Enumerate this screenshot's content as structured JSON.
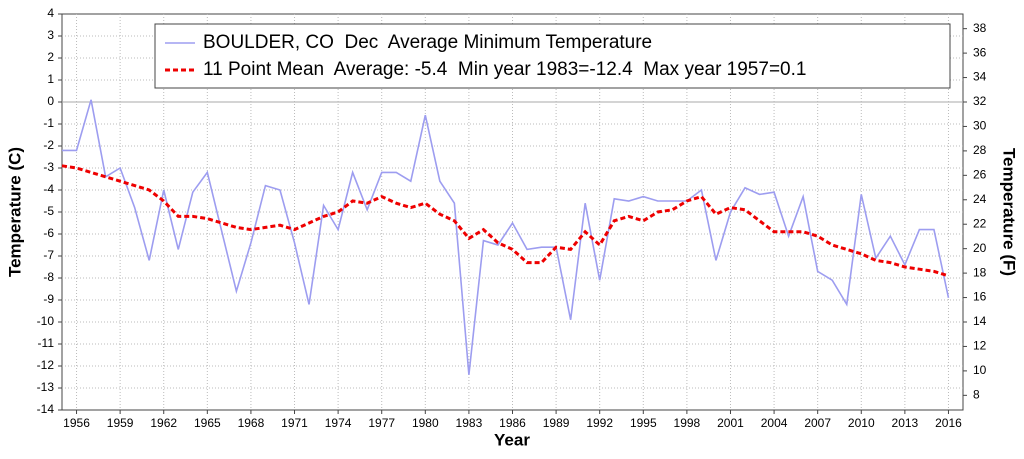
{
  "chart_data": {
    "type": "line",
    "title": "BOULDER, CO  Dec  Average Minimum Temperature",
    "xlabel": "Year",
    "ylabel": "Temperature (C)",
    "y2label": "Temperature (F)",
    "x": [
      1955,
      1956,
      1957,
      1958,
      1959,
      1960,
      1961,
      1962,
      1963,
      1964,
      1965,
      1966,
      1967,
      1968,
      1969,
      1970,
      1971,
      1972,
      1973,
      1974,
      1975,
      1976,
      1977,
      1978,
      1979,
      1980,
      1981,
      1982,
      1983,
      1984,
      1985,
      1986,
      1987,
      1988,
      1989,
      1990,
      1991,
      1992,
      1993,
      1994,
      1995,
      1996,
      1997,
      1998,
      1999,
      2000,
      2001,
      2002,
      2003,
      2004,
      2005,
      2006,
      2007,
      2008,
      2009,
      2010,
      2011,
      2012,
      2013,
      2014,
      2015,
      2016
    ],
    "series": [
      {
        "name": "BOULDER, CO  Dec  Average Minimum Temperature",
        "color": "#9d9df0",
        "linestyle": "solid",
        "values": [
          -2.2,
          -2.2,
          0.1,
          -3.4,
          -3.0,
          -4.8,
          -7.2,
          -4.0,
          -6.7,
          -4.1,
          -3.2,
          -5.9,
          -8.6,
          -6.4,
          -3.8,
          -4.0,
          -6.4,
          -9.2,
          -4.7,
          -5.8,
          -3.2,
          -4.9,
          -3.2,
          -3.2,
          -3.6,
          -0.6,
          -3.6,
          -4.6,
          -12.4,
          -6.3,
          -6.5,
          -5.5,
          -6.7,
          -6.6,
          -6.6,
          -9.9,
          -4.6,
          -8.1,
          -4.4,
          -4.5,
          -4.3,
          -4.5,
          -4.5,
          -4.5,
          -4.0,
          -7.2,
          -5.0,
          -3.9,
          -4.2,
          -4.1,
          -6.1,
          -4.3,
          -7.7,
          -8.1,
          -9.2,
          -4.2,
          -7.1,
          -6.1,
          -7.4,
          -5.8,
          -5.8,
          -8.9
        ]
      },
      {
        "name": "11 Point Mean  Average: -5.4  Min year 1983=-12.4  Max year 1957=0.1",
        "color": "#ee0000",
        "linestyle": "dashed",
        "values": [
          -2.9,
          -3.0,
          -3.2,
          -3.4,
          -3.6,
          -3.8,
          -4.0,
          -4.5,
          -5.2,
          -5.2,
          -5.3,
          -5.5,
          -5.7,
          -5.8,
          -5.7,
          -5.6,
          -5.8,
          -5.5,
          -5.2,
          -5.0,
          -4.5,
          -4.6,
          -4.3,
          -4.6,
          -4.8,
          -4.6,
          -5.1,
          -5.4,
          -6.2,
          -5.8,
          -6.4,
          -6.7,
          -7.3,
          -7.3,
          -6.6,
          -6.7,
          -5.9,
          -6.5,
          -5.4,
          -5.2,
          -5.4,
          -5.0,
          -4.9,
          -4.5,
          -4.3,
          -5.1,
          -4.8,
          -4.9,
          -5.4,
          -5.9,
          -5.9,
          -5.9,
          -6.1,
          -6.5,
          -6.7,
          -6.9,
          -7.2,
          -7.3,
          -7.5,
          -7.6,
          -7.7,
          -7.9
        ]
      }
    ],
    "xlim": [
      1955,
      2017
    ],
    "xticks": [
      1956,
      1959,
      1962,
      1965,
      1968,
      1971,
      1974,
      1977,
      1980,
      1983,
      1986,
      1989,
      1992,
      1995,
      1998,
      2001,
      2004,
      2007,
      2010,
      2013,
      2016
    ],
    "ylim": [
      -14,
      4
    ],
    "yticks": [
      -14,
      -13,
      -12,
      -11,
      -10,
      -9,
      -8,
      -7,
      -6,
      -5,
      -4,
      -3,
      -2,
      -1,
      0,
      1,
      2,
      3,
      4
    ],
    "y2lim": [
      6.8,
      39.2
    ],
    "y2ticks": [
      8,
      10,
      12,
      14,
      16,
      18,
      20,
      22,
      24,
      26,
      28,
      30,
      32,
      34,
      36,
      38
    ],
    "grid": true,
    "legend": "top"
  }
}
